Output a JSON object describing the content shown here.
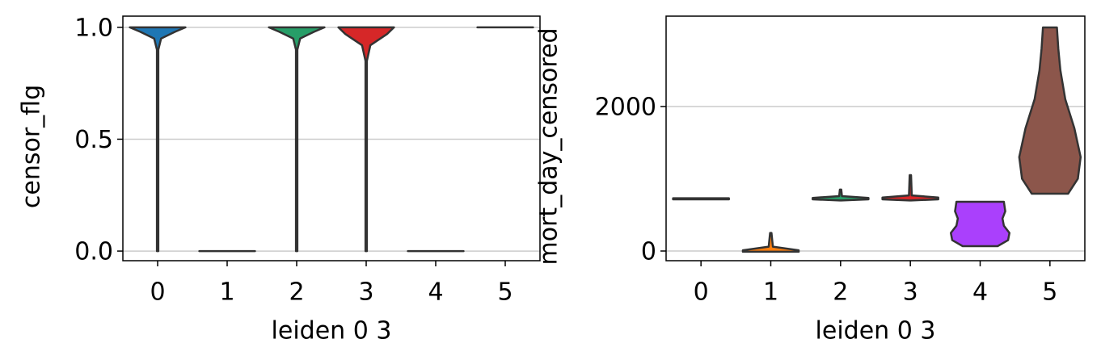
{
  "chart_data": [
    {
      "type": "violin",
      "xlabel": "leiden 0 3",
      "ylabel": "censor_flg",
      "categories": [
        "0",
        "1",
        "2",
        "3",
        "4",
        "5"
      ],
      "ylim": [
        -0.043,
        1.05
      ],
      "yticks": [
        {
          "value": 0,
          "label": "0.0"
        },
        {
          "value": 0.5,
          "label": "0.5"
        },
        {
          "value": 1,
          "label": "1.0"
        }
      ],
      "grid": true,
      "violins": [
        {
          "color": "#1f77b4",
          "y": [
            0,
            0.9,
            0.95,
            0.98,
            1.0
          ],
          "width": [
            0.01,
            0.01,
            0.05,
            0.25,
            0.4
          ]
        },
        {
          "color": "#ff7f0e",
          "y": [
            0,
            0
          ],
          "width": [
            0.4,
            0.4
          ]
        },
        {
          "color": "#279e68",
          "y": [
            0,
            0.9,
            0.95,
            0.98,
            1.0
          ],
          "width": [
            0.01,
            0.01,
            0.05,
            0.25,
            0.4
          ]
        },
        {
          "color": "#d62728",
          "y": [
            0,
            0.85,
            0.92,
            0.97,
            1.0
          ],
          "width": [
            0.01,
            0.01,
            0.06,
            0.3,
            0.4
          ]
        },
        {
          "color": "#aa40fc",
          "y": [
            0,
            0
          ],
          "width": [
            0.4,
            0.4
          ]
        },
        {
          "color": "#8c564b",
          "y": [
            1,
            1
          ],
          "width": [
            0.4,
            0.4
          ]
        }
      ]
    },
    {
      "type": "violin",
      "xlabel": "leiden 0 3",
      "ylabel": "mort_day_censored",
      "categories": [
        "0",
        "1",
        "2",
        "3",
        "4",
        "5"
      ],
      "ylim": [
        -134,
        3251
      ],
      "yticks": [
        0,
        2000
      ],
      "grid": true,
      "violins": [
        {
          "color": "#1f77b4",
          "y": [
            715,
            730
          ],
          "width": [
            0.4,
            0.4
          ]
        },
        {
          "color": "#ff7f0e",
          "y": [
            -10,
            10,
            60,
            250
          ],
          "width": [
            0.4,
            0.4,
            0.03,
            0.01
          ]
        },
        {
          "color": "#279e68",
          "y": [
            700,
            715,
            735,
            760,
            850
          ],
          "width": [
            0.01,
            0.4,
            0.4,
            0.02,
            0.01
          ]
        },
        {
          "color": "#d62728",
          "y": [
            700,
            715,
            740,
            770,
            1050
          ],
          "width": [
            0.01,
            0.4,
            0.4,
            0.02,
            0.01
          ]
        },
        {
          "color": "#aa40fc",
          "y": [
            67,
            150,
            250,
            350,
            450,
            550,
            681
          ],
          "width": [
            0.25,
            0.4,
            0.42,
            0.34,
            0.32,
            0.36,
            0.34
          ]
        },
        {
          "color": "#8c564b",
          "y": [
            793,
            1000,
            1300,
            1700,
            2100,
            2500,
            2800,
            3095
          ],
          "width": [
            0.26,
            0.4,
            0.44,
            0.35,
            0.22,
            0.15,
            0.12,
            0.1
          ]
        }
      ]
    }
  ]
}
